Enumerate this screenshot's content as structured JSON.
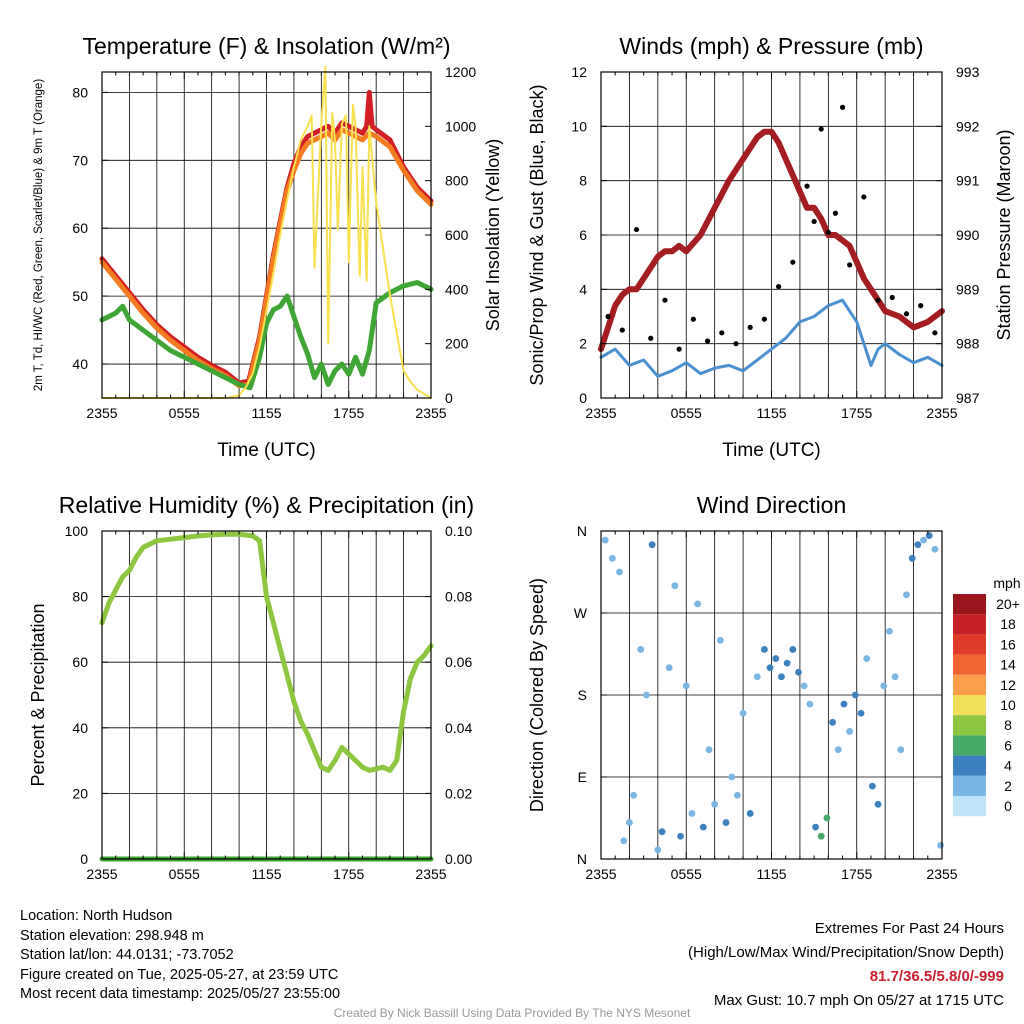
{
  "chart_data": [
    {
      "type": "line",
      "title": "Temperature (F) & Insolation (W/m²)",
      "xlabel": "Time (UTC)",
      "ylabel": "2m T, Td, HI/WC (Red, Green, Scarlet/Blue) & 9m T (Orange)",
      "ylabel2": "Solar Insolation (Yellow)",
      "x_ticks": [
        "2355",
        "0555",
        "1155",
        "1755",
        "2355"
      ],
      "y_ticks": [
        40,
        50,
        60,
        70,
        80
      ],
      "y2_ticks": [
        0,
        200,
        400,
        600,
        800,
        1000,
        1200
      ],
      "xlim": [
        0,
        24
      ],
      "ylim": [
        35,
        83
      ],
      "y2lim": [
        0,
        1200
      ],
      "grid": true,
      "series": [
        {
          "name": "2m T",
          "color": "#d21f26",
          "axis": "left",
          "x": [
            0,
            1,
            2,
            3,
            4,
            5,
            6,
            7,
            8,
            9,
            10,
            10.7,
            11.5,
            12,
            12.5,
            13,
            13.5,
            14,
            14.5,
            15,
            15.5,
            16,
            16.5,
            17,
            17.5,
            18,
            18.5,
            19,
            19.3,
            19.5,
            19.7,
            20,
            21,
            22,
            23,
            24
          ],
          "y": [
            55.5,
            53,
            50.5,
            48,
            45.8,
            44,
            42.5,
            41,
            39.8,
            38.8,
            37.2,
            37.5,
            44,
            50,
            56,
            61,
            66,
            69.5,
            72,
            73.5,
            74,
            74.5,
            75,
            74,
            75.5,
            75,
            74.5,
            74,
            75,
            80,
            75,
            74.5,
            73,
            69,
            66,
            64
          ]
        },
        {
          "name": "9m T",
          "color": "#f47c20",
          "axis": "left",
          "x": [
            0,
            1,
            2,
            3,
            4,
            5,
            6,
            7,
            8,
            9,
            10,
            10.7,
            11.5,
            12,
            12.5,
            13,
            13.5,
            14,
            14.5,
            15,
            15.5,
            16,
            16.5,
            17,
            17.5,
            18,
            18.5,
            19,
            19.5,
            20,
            21,
            22,
            23,
            24
          ],
          "y": [
            55,
            52.5,
            50,
            47.5,
            45.3,
            43.5,
            42,
            40.5,
            39.3,
            38.3,
            36.8,
            37,
            43.5,
            49.5,
            55.5,
            60.5,
            65.5,
            68.5,
            71,
            72.5,
            73,
            73.5,
            74,
            73,
            74.5,
            74,
            73.5,
            73,
            74,
            73.5,
            72,
            68.5,
            65.5,
            63.5
          ]
        },
        {
          "name": "Td",
          "color": "#3fa535",
          "axis": "left",
          "x": [
            0,
            1,
            1.5,
            2,
            3,
            4,
            5,
            6,
            7,
            8,
            9,
            10,
            10.8,
            11.5,
            12,
            12.5,
            13,
            13.5,
            14,
            14.5,
            15,
            15.5,
            16,
            16.5,
            17,
            17.5,
            18,
            18.5,
            19,
            19.5,
            20,
            21,
            22,
            23,
            24
          ],
          "y": [
            46.5,
            47.5,
            48.5,
            46.5,
            45,
            43.5,
            42,
            41,
            40,
            39,
            38,
            37,
            36.5,
            41,
            46,
            48,
            48.5,
            50,
            47,
            44,
            41.5,
            38,
            40,
            37,
            39,
            40,
            38.5,
            41,
            38.5,
            42,
            49,
            50.5,
            51.5,
            52,
            51
          ]
        },
        {
          "name": "Solar Insolation",
          "color": "#f9e04f",
          "axis": "right",
          "x": [
            0,
            8,
            9,
            10,
            10.5,
            11,
            11.5,
            12,
            12.5,
            13,
            13.5,
            14,
            14.5,
            15,
            15.3,
            15.5,
            16,
            16.3,
            16.5,
            16.8,
            17,
            17.2,
            17.5,
            17.8,
            18,
            18.3,
            18.5,
            18.8,
            19,
            19.3,
            19.5,
            20,
            21,
            22,
            22.5,
            23,
            24
          ],
          "y": [
            0,
            0,
            0,
            10,
            40,
            90,
            190,
            320,
            460,
            600,
            730,
            850,
            950,
            1000,
            1040,
            480,
            1010,
            1220,
            200,
            1050,
            950,
            620,
            1010,
            1040,
            500,
            1080,
            1000,
            450,
            850,
            430,
            1000,
            720,
            380,
            100,
            60,
            30,
            0
          ]
        }
      ]
    },
    {
      "type": "line",
      "title": "Winds (mph) & Pressure (mb)",
      "xlabel": "Time (UTC)",
      "ylabel": "Sonic/Prop Wind & Gust (Blue, Black)",
      "ylabel2": "Station Pressure (Maroon)",
      "x_ticks": [
        "2355",
        "0555",
        "1155",
        "1755",
        "2355"
      ],
      "y_ticks": [
        0,
        2,
        4,
        6,
        8,
        10,
        12
      ],
      "y2_ticks": [
        987,
        988,
        989,
        990,
        991,
        992,
        993
      ],
      "xlim": [
        0,
        24
      ],
      "ylim": [
        0,
        12
      ],
      "y2lim": [
        987,
        993
      ],
      "grid": true,
      "series": [
        {
          "name": "Station Pressure",
          "color": "#a31d21",
          "axis": "right",
          "x": [
            0,
            0.5,
            1,
            1.5,
            2,
            2.5,
            3,
            3.5,
            4,
            4.5,
            5,
            5.5,
            6,
            7,
            8,
            9,
            10,
            11,
            11.5,
            12,
            12.5,
            13,
            13.5,
            14,
            14.5,
            15,
            15.5,
            16,
            16.5,
            17,
            17.5,
            18,
            18.5,
            19,
            19.5,
            20,
            21,
            22,
            23,
            24
          ],
          "y": [
            987.9,
            988.3,
            988.7,
            988.9,
            989.0,
            989.0,
            989.2,
            989.4,
            989.6,
            989.7,
            989.7,
            989.8,
            989.7,
            990.0,
            990.5,
            991.0,
            991.4,
            991.8,
            991.9,
            991.9,
            991.7,
            991.4,
            991.1,
            990.8,
            990.5,
            990.5,
            990.3,
            990.0,
            990.0,
            989.9,
            989.8,
            989.5,
            989.2,
            989.0,
            988.8,
            988.6,
            988.5,
            988.3,
            988.4,
            988.6
          ]
        },
        {
          "name": "Sonic/Prop Wind",
          "color": "#4a90d0",
          "axis": "left",
          "x": [
            0,
            1,
            2,
            3,
            4,
            5,
            6,
            7,
            8,
            9,
            10,
            11,
            12,
            13,
            14,
            15,
            15.5,
            16,
            16.5,
            17,
            17.5,
            18,
            18.5,
            19,
            19.5,
            20,
            21,
            22,
            23,
            24
          ],
          "y": [
            1.5,
            1.8,
            1.2,
            1.4,
            0.8,
            1.0,
            1.3,
            0.9,
            1.1,
            1.2,
            1.0,
            1.4,
            1.8,
            2.2,
            2.8,
            3.0,
            3.2,
            3.4,
            3.5,
            3.6,
            3.2,
            2.8,
            2.0,
            1.2,
            1.8,
            2.0,
            1.6,
            1.3,
            1.5,
            1.2
          ]
        },
        {
          "name": "Gust",
          "color": "#000000",
          "axis": "left",
          "x": [
            0.5,
            1.5,
            2.5,
            3.5,
            4.5,
            5.5,
            6.5,
            7.5,
            8.5,
            9.5,
            10.5,
            11.5,
            12.5,
            13.5,
            14.5,
            15,
            15.5,
            16,
            16.5,
            17,
            17.5,
            18.5,
            19.5,
            20.5,
            21.5,
            22.5,
            23.5
          ],
          "y": [
            3.0,
            2.5,
            6.2,
            2.2,
            3.6,
            1.8,
            2.9,
            2.1,
            2.4,
            2.0,
            2.6,
            2.9,
            4.1,
            5.0,
            7.8,
            6.5,
            9.9,
            6.1,
            6.8,
            10.7,
            4.9,
            7.4,
            3.6,
            3.7,
            3.1,
            3.4,
            2.4
          ]
        }
      ]
    },
    {
      "type": "line",
      "title": "Relative Humidity (%) & Precipitation (in)",
      "xlabel": "",
      "ylabel": "Percent & Precipitation",
      "x_ticks": [
        "2355",
        "0555",
        "1155",
        "1755",
        "2355"
      ],
      "y_ticks": [
        0,
        20,
        40,
        60,
        80,
        100
      ],
      "y2_ticks": [
        "0.00",
        "0.02",
        "0.04",
        "0.06",
        "0.08",
        "0.10"
      ],
      "xlim": [
        0,
        24
      ],
      "ylim": [
        0,
        100
      ],
      "y2lim": [
        0,
        0.1
      ],
      "grid": true,
      "series": [
        {
          "name": "Relative Humidity",
          "color": "#8dc63f",
          "axis": "left",
          "x": [
            0,
            0.5,
            1,
            1.5,
            2,
            2.5,
            3,
            4,
            5,
            6,
            7,
            8,
            9,
            10,
            11,
            11.5,
            12,
            12.5,
            13,
            13.5,
            14,
            14.5,
            15,
            15.5,
            16,
            16.5,
            17,
            17.5,
            18,
            18.5,
            19,
            19.5,
            20,
            20.5,
            21,
            21.5,
            22,
            22.5,
            23,
            23.5,
            24
          ],
          "y": [
            72,
            78,
            82,
            86,
            88,
            92,
            95,
            97,
            97.5,
            98,
            98.5,
            98.8,
            99,
            99,
            98.5,
            97,
            80,
            72,
            64,
            56,
            48,
            42,
            38,
            33,
            28,
            27,
            30,
            34,
            32,
            30,
            28,
            27,
            27.5,
            28,
            27,
            30,
            45,
            55,
            60,
            62,
            65
          ]
        },
        {
          "name": "Precipitation",
          "color": "#3fa535",
          "axis": "right",
          "x": [
            0,
            24
          ],
          "y": [
            0,
            0
          ]
        }
      ]
    },
    {
      "type": "scatter",
      "title": "Wind Direction",
      "xlabel": "",
      "ylabel": "Direction (Colored By Speed)",
      "x_ticks": [
        "2355",
        "0555",
        "1155",
        "1755",
        "2355"
      ],
      "y_ticks": [
        "N",
        "E",
        "S",
        "W",
        "N"
      ],
      "xlim": [
        0,
        24
      ],
      "ylim": [
        0,
        360
      ],
      "grid": true,
      "legend": {
        "title": "mph",
        "position": "right",
        "labels": [
          "20+",
          "18",
          "16",
          "14",
          "12",
          "10",
          "8",
          "6",
          "4",
          "2",
          "0"
        ],
        "colors": [
          "#99161c",
          "#c62127",
          "#e03a2b",
          "#f16331",
          "#fa9f48",
          "#f2de5b",
          "#8dc63f",
          "#47a96a",
          "#3b81c0",
          "#79b6e3",
          "#bfe3f7"
        ]
      },
      "points": [
        {
          "x": 0.3,
          "dir": 350,
          "speed": 1
        },
        {
          "x": 0.8,
          "dir": 330,
          "speed": 1
        },
        {
          "x": 1.3,
          "dir": 315,
          "speed": 2
        },
        {
          "x": 1.6,
          "dir": 20,
          "speed": 2
        },
        {
          "x": 2.0,
          "dir": 40,
          "speed": 1
        },
        {
          "x": 2.3,
          "dir": 70,
          "speed": 2
        },
        {
          "x": 2.8,
          "dir": 230,
          "speed": 2
        },
        {
          "x": 3.2,
          "dir": 180,
          "speed": 1
        },
        {
          "x": 3.6,
          "dir": 345,
          "speed": 3
        },
        {
          "x": 4.0,
          "dir": 10,
          "speed": 2
        },
        {
          "x": 4.3,
          "dir": 30,
          "speed": 3
        },
        {
          "x": 4.8,
          "dir": 210,
          "speed": 1
        },
        {
          "x": 5.2,
          "dir": 300,
          "speed": 2
        },
        {
          "x": 5.6,
          "dir": 25,
          "speed": 4
        },
        {
          "x": 6.0,
          "dir": 190,
          "speed": 1
        },
        {
          "x": 6.4,
          "dir": 50,
          "speed": 2
        },
        {
          "x": 6.8,
          "dir": 280,
          "speed": 1
        },
        {
          "x": 7.2,
          "dir": 35,
          "speed": 3
        },
        {
          "x": 7.6,
          "dir": 120,
          "speed": 2
        },
        {
          "x": 8.0,
          "dir": 60,
          "speed": 2
        },
        {
          "x": 8.4,
          "dir": 240,
          "speed": 1
        },
        {
          "x": 8.8,
          "dir": 40,
          "speed": 3
        },
        {
          "x": 9.2,
          "dir": 90,
          "speed": 2
        },
        {
          "x": 9.6,
          "dir": 70,
          "speed": 2
        },
        {
          "x": 10.0,
          "dir": 160,
          "speed": 1
        },
        {
          "x": 10.5,
          "dir": 50,
          "speed": 3
        },
        {
          "x": 11.0,
          "dir": 200,
          "speed": 2
        },
        {
          "x": 11.5,
          "dir": 230,
          "speed": 3
        },
        {
          "x": 11.9,
          "dir": 210,
          "speed": 4
        },
        {
          "x": 12.3,
          "dir": 220,
          "speed": 3
        },
        {
          "x": 12.7,
          "dir": 200,
          "speed": 4
        },
        {
          "x": 13.1,
          "dir": 215,
          "speed": 3
        },
        {
          "x": 13.5,
          "dir": 230,
          "speed": 4
        },
        {
          "x": 13.9,
          "dir": 205,
          "speed": 3
        },
        {
          "x": 14.3,
          "dir": 190,
          "speed": 2
        },
        {
          "x": 14.7,
          "dir": 170,
          "speed": 2
        },
        {
          "x": 15.1,
          "dir": 35,
          "speed": 4
        },
        {
          "x": 15.5,
          "dir": 25,
          "speed": 5
        },
        {
          "x": 15.9,
          "dir": 45,
          "speed": 6
        },
        {
          "x": 16.3,
          "dir": 150,
          "speed": 3
        },
        {
          "x": 16.7,
          "dir": 120,
          "speed": 2
        },
        {
          "x": 17.1,
          "dir": 170,
          "speed": 3
        },
        {
          "x": 17.5,
          "dir": 140,
          "speed": 2
        },
        {
          "x": 17.9,
          "dir": 180,
          "speed": 3
        },
        {
          "x": 18.3,
          "dir": 160,
          "speed": 4
        },
        {
          "x": 18.7,
          "dir": 220,
          "speed": 1
        },
        {
          "x": 19.1,
          "dir": 80,
          "speed": 4
        },
        {
          "x": 19.5,
          "dir": 60,
          "speed": 3
        },
        {
          "x": 19.9,
          "dir": 190,
          "speed": 2
        },
        {
          "x": 20.3,
          "dir": 250,
          "speed": 1
        },
        {
          "x": 20.7,
          "dir": 200,
          "speed": 2
        },
        {
          "x": 21.1,
          "dir": 120,
          "speed": 1
        },
        {
          "x": 21.5,
          "dir": 290,
          "speed": 2
        },
        {
          "x": 21.9,
          "dir": 330,
          "speed": 3
        },
        {
          "x": 22.3,
          "dir": 345,
          "speed": 3
        },
        {
          "x": 22.7,
          "dir": 350,
          "speed": 2
        },
        {
          "x": 23.1,
          "dir": 355,
          "speed": 3
        },
        {
          "x": 23.5,
          "dir": 340,
          "speed": 2
        },
        {
          "x": 23.9,
          "dir": 15,
          "speed": 1
        }
      ]
    }
  ],
  "info": {
    "location": "Location: North Hudson",
    "elevation": "Station elevation: 298.948 m",
    "latlon": "Station lat/lon: 44.0131; -73.7052",
    "created": "Figure created on Tue, 2025-05-27, at 23:59 UTC",
    "recent": "Most recent data timestamp: 2025/05/27 23:55:00"
  },
  "extremes": {
    "heading": "Extremes For Past 24 Hours",
    "subheading": "(High/Low/Max Wind/Precipitation/Snow Depth)",
    "values": "81.7/36.5/5.8/0/-999",
    "gust": "Max Gust: 10.7 mph On 05/27 at 1715 UTC"
  },
  "credit": "Created By Nick Bassill Using Data Provided By The NYS Mesonet",
  "colors": {
    "accent": "#c8202f",
    "grid": "#000000",
    "credit": "#999999"
  }
}
